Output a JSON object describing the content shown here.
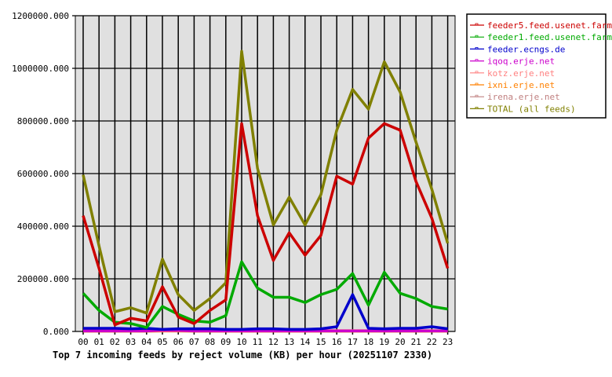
{
  "chart_data": {
    "type": "line",
    "title": "Top 7 incoming feeds by reject volume (KB) per hour (20251107 2330)",
    "xlabel": "",
    "ylabel": "",
    "ylim": [
      0,
      1200000
    ],
    "yticks": [
      "0.000",
      "200000.000",
      "400000.000",
      "600000.000",
      "800000.000",
      "1000000.000",
      "1200000.000"
    ],
    "ytick_values": [
      0,
      200000,
      400000,
      600000,
      800000,
      1000000,
      1200000
    ],
    "categories": [
      "00",
      "01",
      "02",
      "03",
      "04",
      "05",
      "06",
      "07",
      "08",
      "09",
      "10",
      "11",
      "12",
      "13",
      "14",
      "15",
      "16",
      "17",
      "18",
      "19",
      "20",
      "21",
      "22",
      "23"
    ],
    "grid": true,
    "legend_position": "right",
    "background": "#e0e0e0",
    "series": [
      {
        "name": "feeder5.feed.usenet.farm",
        "color": "#cc0000",
        "values": [
          440000,
          240000,
          25000,
          50000,
          40000,
          170000,
          55000,
          30000,
          80000,
          120000,
          790000,
          440000,
          270000,
          375000,
          290000,
          365000,
          590000,
          560000,
          735000,
          790000,
          765000,
          570000,
          430000,
          240000
        ]
      },
      {
        "name": "feeder1.feed.usenet.farm",
        "color": "#00aa00",
        "values": [
          145000,
          80000,
          35000,
          30000,
          15000,
          95000,
          65000,
          40000,
          35000,
          60000,
          265000,
          165000,
          130000,
          130000,
          110000,
          140000,
          160000,
          220000,
          100000,
          225000,
          145000,
          125000,
          95000,
          85000
        ]
      },
      {
        "name": "feeder.ecngs.de",
        "color": "#0000cc",
        "values": [
          12000,
          12000,
          12000,
          10000,
          12000,
          8000,
          10000,
          10000,
          10000,
          8000,
          8000,
          10000,
          10000,
          8000,
          8000,
          10000,
          18000,
          140000,
          12000,
          10000,
          12000,
          12000,
          18000,
          10000
        ]
      },
      {
        "name": "iqoq.erje.net",
        "color": "#cc00cc",
        "values": [
          2000,
          2000,
          2000,
          2000,
          2000,
          5000,
          4000,
          2000,
          2000,
          2000,
          2000,
          2000,
          2000,
          2000,
          2000,
          2000,
          2000,
          2000,
          2000,
          2000,
          2000,
          2000,
          2000,
          2000
        ]
      },
      {
        "name": "kotz.erje.net",
        "color": "#ff8080",
        "values": [
          3000,
          3000,
          3000,
          3000,
          3000,
          3000,
          3000,
          3000,
          3000,
          3000,
          3000,
          3000,
          3000,
          3000,
          3000,
          3000,
          3000,
          3000,
          3000,
          3000,
          3000,
          3000,
          3000,
          3000
        ]
      },
      {
        "name": "ixni.erje.net",
        "color": "#ff8000",
        "values": [
          1000,
          1000,
          1000,
          1000,
          1000,
          2000,
          2000,
          1000,
          1000,
          1000,
          1000,
          1000,
          1000,
          1000,
          1000,
          1000,
          1000,
          1000,
          1000,
          1000,
          1000,
          1000,
          1000,
          1000
        ]
      },
      {
        "name": "irena.erje.net",
        "color": "#c08080",
        "values": [
          2000,
          2000,
          2000,
          2000,
          2000,
          2000,
          2000,
          2000,
          2000,
          2000,
          2000,
          2000,
          2000,
          2000,
          2000,
          2000,
          2000,
          2000,
          2000,
          2000,
          2000,
          2000,
          2000,
          2000
        ]
      },
      {
        "name": "TOTAL (all feeds)",
        "color": "#808000",
        "values": [
          595000,
          325000,
          75000,
          90000,
          70000,
          275000,
          140000,
          80000,
          125000,
          185000,
          1065000,
          620000,
          405000,
          510000,
          405000,
          520000,
          765000,
          920000,
          845000,
          1025000,
          910000,
          720000,
          540000,
          335000
        ]
      }
    ]
  }
}
